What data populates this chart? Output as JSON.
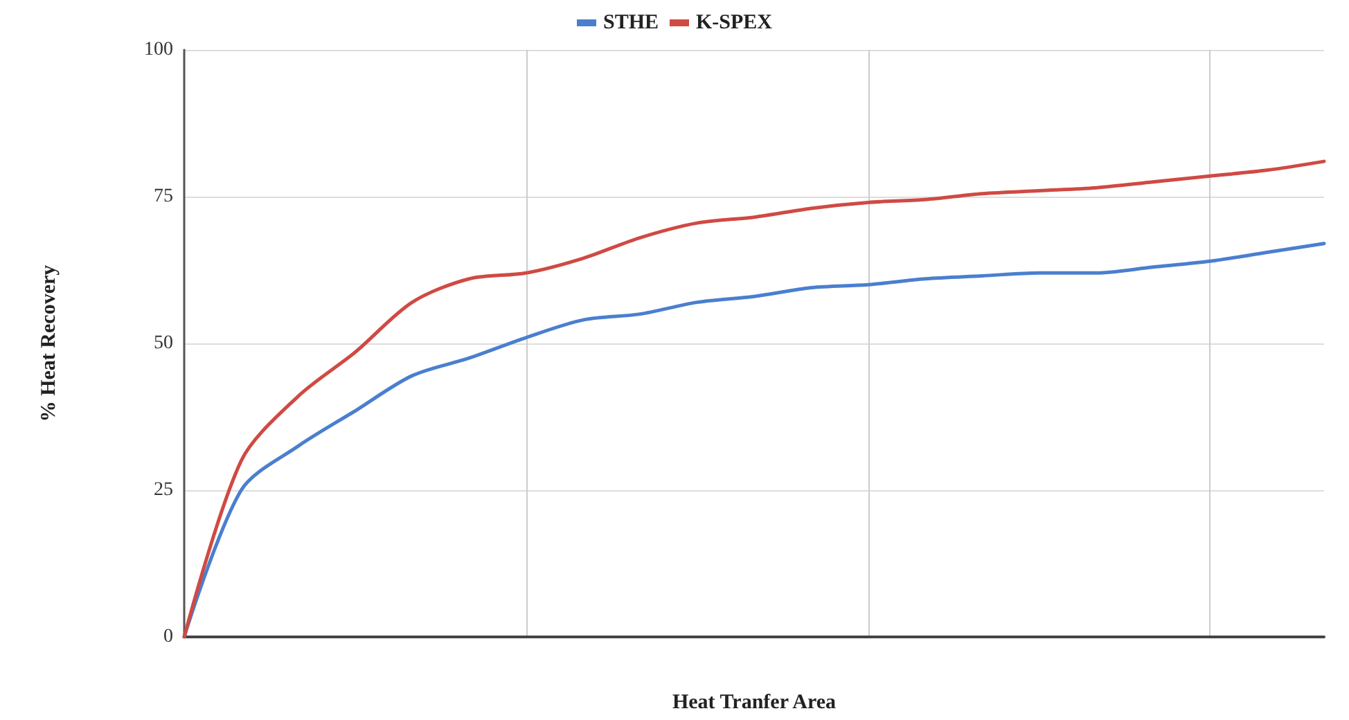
{
  "chart_data": {
    "type": "line",
    "xlabel": "Heat Tranfer Area",
    "ylabel": "% Heat Recovery",
    "categories": [
      null,
      null,
      null,
      null,
      null,
      null,
      null,
      null,
      null,
      null,
      null,
      null,
      null,
      null,
      null,
      null,
      null,
      null,
      null,
      null,
      null
    ],
    "series": [
      {
        "name": "STHE",
        "color": "#4a7fcf",
        "values": [
          0,
          25,
          32.5,
          38.5,
          44.5,
          47.5,
          51,
          54,
          55,
          57,
          58,
          59.5,
          60,
          61,
          61.5,
          62,
          62,
          63,
          64,
          65.5,
          67
        ]
      },
      {
        "name": "K-SPEX",
        "color": "#cf4a43",
        "values": [
          0,
          30,
          41,
          48.5,
          57,
          61,
          62,
          64.5,
          68,
          70.5,
          71.5,
          73,
          74,
          74.5,
          75.5,
          76,
          76.5,
          77.5,
          78.5,
          79.5,
          81
        ]
      }
    ],
    "ylim": [
      0,
      100
    ],
    "yticks": [
      0,
      25,
      50,
      75,
      100
    ],
    "grid": true,
    "legend": "top",
    "marker": "none",
    "line_style": "solid"
  }
}
